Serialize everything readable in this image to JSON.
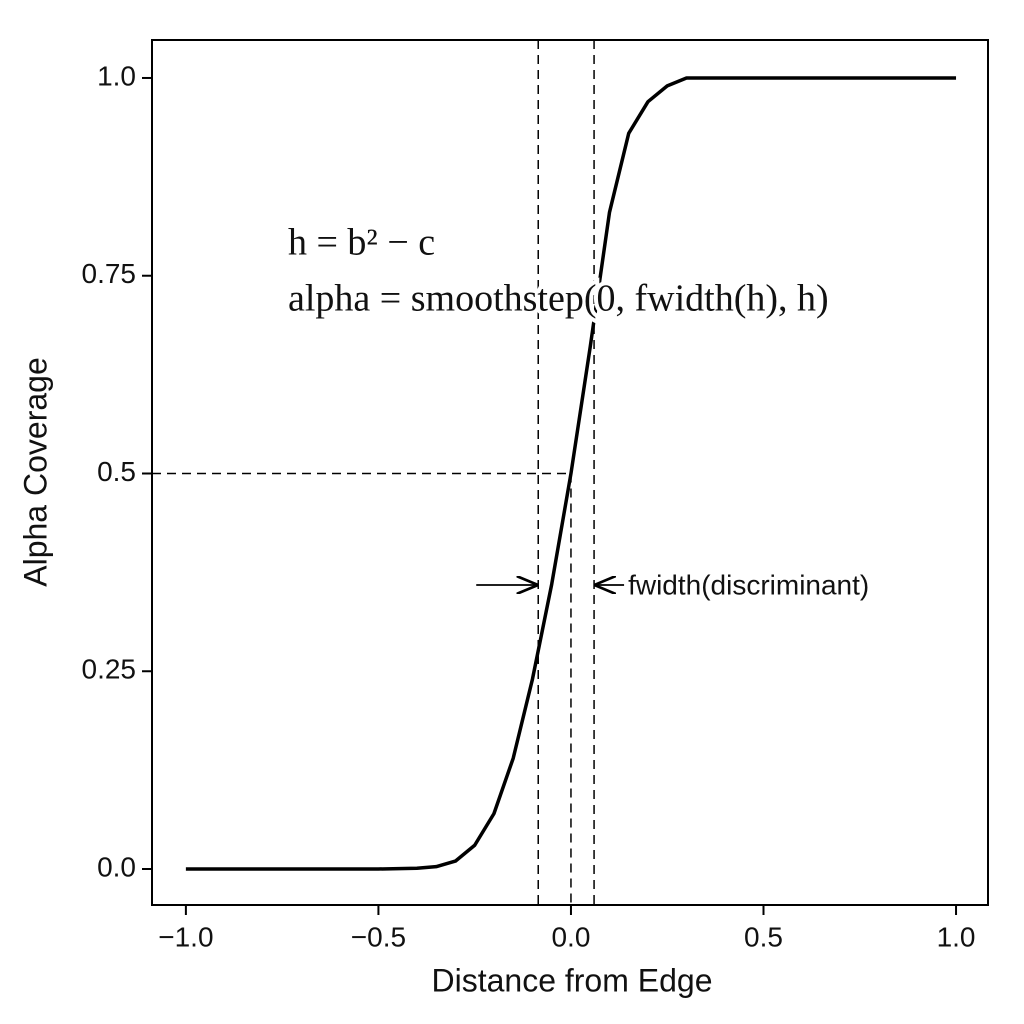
{
  "chart_data": {
    "type": "line",
    "xlabel": "Distance from Edge",
    "ylabel": "Alpha Coverage",
    "x": [
      -1,
      -0.5,
      -0.4,
      -0.35,
      -0.3,
      -0.25,
      -0.2,
      -0.15,
      -0.1,
      -0.05,
      0,
      0.05,
      0.1,
      0.15,
      0.2,
      0.25,
      0.3,
      0.5,
      1
    ],
    "series": [
      {
        "color": "#000000",
        "values": [
          0,
          0,
          0.001,
          0.003,
          0.01,
          0.03,
          0.07,
          0.14,
          0.24,
          0.36,
          0.5,
          0.66,
          0.83,
          0.93,
          0.97,
          0.99,
          1,
          1,
          1
        ]
      }
    ],
    "xlim": [
      -1.088,
      1.083
    ],
    "ylim": [
      -0.0455,
      1.048
    ],
    "xticks": [
      {
        "value": -1,
        "label": "−1.0"
      },
      {
        "value": -0.5,
        "label": "−0.5"
      },
      {
        "value": 0,
        "label": "0.0"
      },
      0.5,
      {
        "value": 1,
        "label": "1.0"
      }
    ],
    "yticks": [
      {
        "value": 0,
        "label": "0.0"
      },
      0.25,
      0.5,
      0.75,
      {
        "value": 1,
        "label": "1.0"
      }
    ],
    "vlines": [
      -0.085,
      0.06
    ],
    "crosshair": {
      "x": 0,
      "y": 0.5
    },
    "annotations": [
      "h = b² − c",
      "alpha = smoothstep(0, fwidth(h), h)",
      "fwidth(discriminant)"
    ]
  }
}
